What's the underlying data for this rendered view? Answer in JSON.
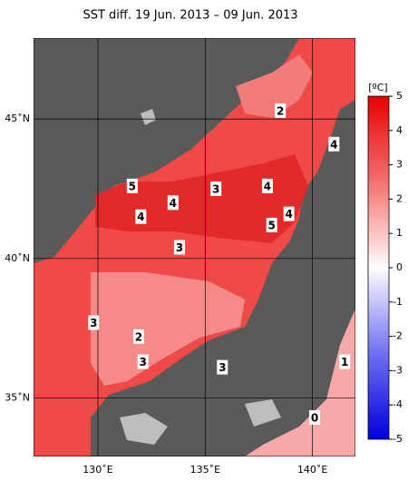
{
  "chart_data": {
    "type": "map",
    "title": "SST diff. 19 Jun. 2013 – 09 Jun. 2013",
    "xlim": [
      127,
      142
    ],
    "ylim": [
      32.9,
      47.9
    ],
    "xticks": [
      {
        "value": 130,
        "label": "130˚E"
      },
      {
        "value": 135,
        "label": "135˚E"
      },
      {
        "value": 140,
        "label": "140˚E"
      }
    ],
    "yticks": [
      {
        "value": 35,
        "label": "35˚N"
      },
      {
        "value": 40,
        "label": "40˚N"
      },
      {
        "value": 45,
        "label": "45˚N"
      }
    ],
    "grid": true,
    "colorbar": {
      "label": "[ºC]",
      "clim": [
        -5,
        5
      ],
      "ticks": [
        5,
        4,
        3,
        2,
        1,
        0,
        -1,
        -2,
        -3,
        -4,
        -5
      ]
    },
    "contour_labels": [
      {
        "value": 2,
        "lon": 138.5,
        "lat": 45.3
      },
      {
        "value": 4,
        "lon": 141.0,
        "lat": 44.1
      },
      {
        "value": 5,
        "lon": 131.6,
        "lat": 42.6
      },
      {
        "value": 4,
        "lon": 133.5,
        "lat": 42.0
      },
      {
        "value": 3,
        "lon": 135.5,
        "lat": 42.5
      },
      {
        "value": 4,
        "lon": 137.9,
        "lat": 42.6
      },
      {
        "value": 4,
        "lon": 132.0,
        "lat": 41.5
      },
      {
        "value": 4,
        "lon": 138.9,
        "lat": 41.6
      },
      {
        "value": 5,
        "lon": 138.1,
        "lat": 41.2
      },
      {
        "value": 3,
        "lon": 133.8,
        "lat": 40.4
      },
      {
        "value": 3,
        "lon": 129.8,
        "lat": 37.7
      },
      {
        "value": 2,
        "lon": 131.9,
        "lat": 37.2
      },
      {
        "value": 3,
        "lon": 132.1,
        "lat": 36.3
      },
      {
        "value": 3,
        "lon": 135.8,
        "lat": 36.1
      },
      {
        "value": 1,
        "lon": 141.5,
        "lat": 36.3
      },
      {
        "value": 0,
        "lon": 140.1,
        "lat": 34.3
      }
    ]
  }
}
